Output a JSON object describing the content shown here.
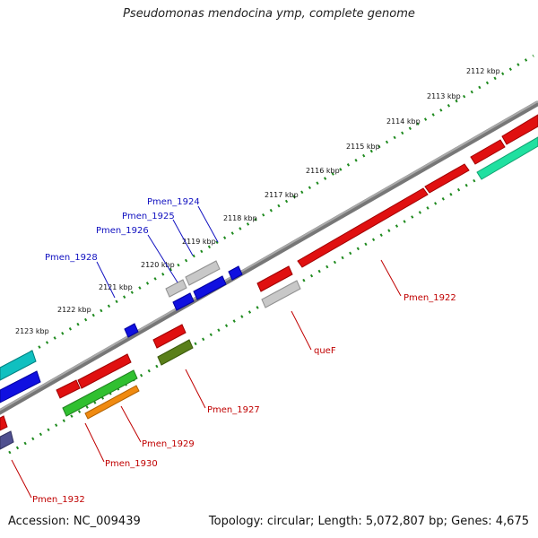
{
  "title": "Pseudomonas mendocina ymp, complete genome",
  "footer": {
    "accession": "Accession: NC_009439",
    "summary": "Topology: circular; Length: 5,072,807 bp; Genes: 4,675"
  },
  "colors": {
    "backbone": "#8a8a8a",
    "tick_dots": "#1e8a1e",
    "forward_label": "#1010c0",
    "reverse_label": "#c00000"
  },
  "kbp_labels": [
    "2112 kbp",
    "2113 kbp",
    "2114 kbp",
    "2115 kbp",
    "2116 kbp",
    "2117 kbp",
    "2118 kbp",
    "2119 kbp",
    "2120 kbp",
    "2121 kbp",
    "2122 kbp",
    "2123 kbp"
  ],
  "gene_labels": {
    "top": [
      "Pmen_1924",
      "Pmen_1925",
      "Pmen_1926",
      "Pmen_1928"
    ],
    "bottom": [
      "Pmen_1922",
      "queF",
      "Pmen_1927",
      "Pmen_1929",
      "Pmen_1930",
      "Pmen_1932"
    ]
  }
}
